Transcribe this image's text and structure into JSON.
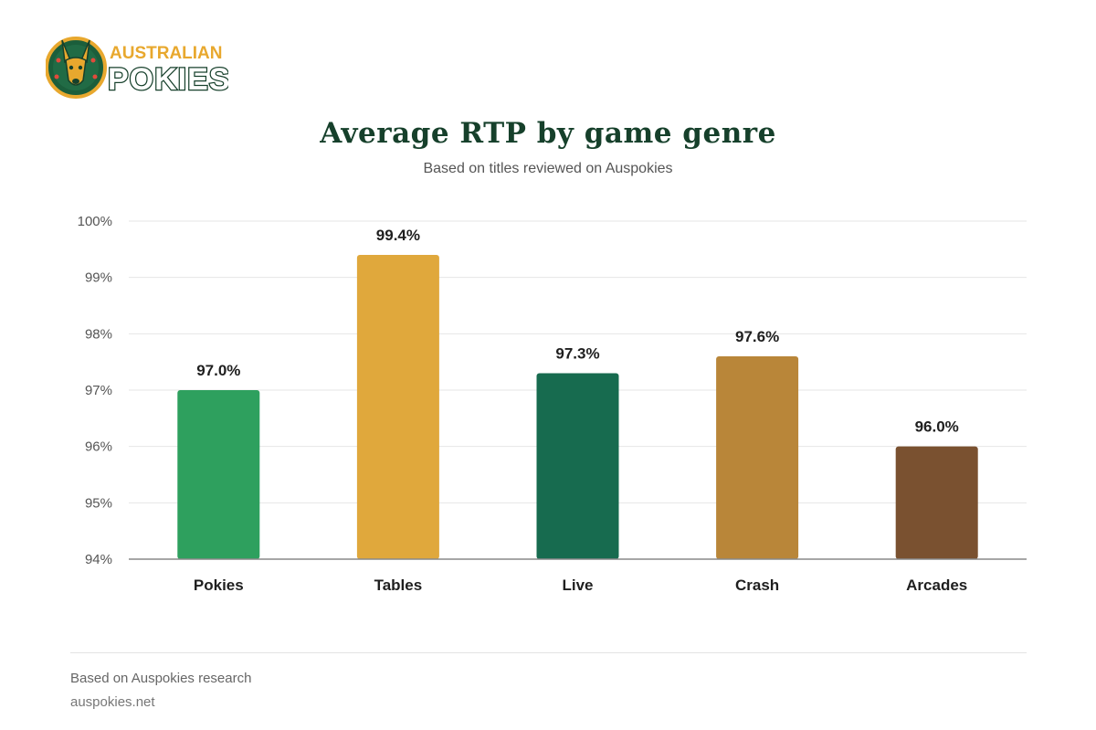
{
  "logo": {
    "line1": "AUSTRALIAN",
    "line2": "POKIES",
    "icon": "kangaroo-icon",
    "colors": {
      "gold": "#e8a82e",
      "green": "#1b5e3b",
      "dark": "#16402b"
    }
  },
  "chart_data": {
    "type": "bar",
    "title": "Average RTP by game genre",
    "subtitle": "Based on titles reviewed on Auspokies",
    "xlabel": "",
    "ylabel": "",
    "categories": [
      "Pokies",
      "Tables",
      "Live",
      "Crash",
      "Arcades"
    ],
    "values": [
      97.0,
      99.4,
      97.3,
      97.6,
      96.0
    ],
    "value_labels": [
      "97.0%",
      "99.4%",
      "97.3%",
      "97.6%",
      "96.0%"
    ],
    "colors": [
      "#2ea05e",
      "#e0a83c",
      "#176b4f",
      "#b98639",
      "#7a5130"
    ],
    "ylim": [
      94,
      100
    ],
    "yticks": [
      94,
      95,
      96,
      97,
      98,
      99,
      100
    ],
    "ytick_labels": [
      "94%",
      "95%",
      "96%",
      "97%",
      "98%",
      "99%",
      "100%"
    ],
    "grid": true,
    "legend": "none"
  },
  "footer": {
    "source": "Based on Auspokies research",
    "site": "auspokies.net"
  }
}
